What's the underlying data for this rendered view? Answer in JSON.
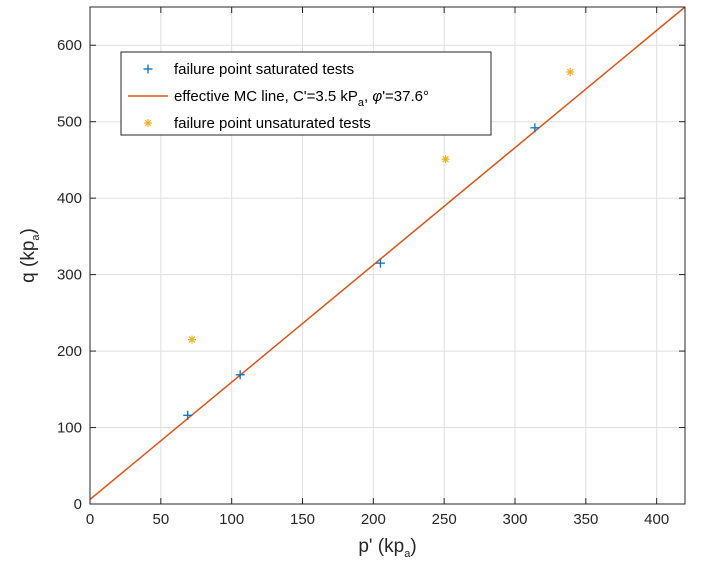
{
  "chart_data": {
    "type": "scatter",
    "title": "",
    "xlabel_main": "p' (kp",
    "xlabel_sub": "a",
    "xlabel_end": ")",
    "ylabel_main": "q (kp",
    "ylabel_sub": "a",
    "ylabel_end": ")",
    "xlim": [
      0,
      420
    ],
    "ylim": [
      0,
      650
    ],
    "xticks": [
      0,
      50,
      100,
      150,
      200,
      250,
      300,
      350,
      400
    ],
    "yticks": [
      0,
      100,
      200,
      300,
      400,
      500,
      600
    ],
    "grid": true,
    "legend_position": "top-left",
    "series": [
      {
        "name": "failure point saturated tests",
        "marker": "plus",
        "color": "#0072BD",
        "points": [
          [
            69,
            116
          ],
          [
            106,
            169
          ],
          [
            205,
            315
          ],
          [
            314,
            492
          ]
        ]
      },
      {
        "name": "effective MC line",
        "name_parts": {
          "a": "effective MC line, C'=3.5 kP",
          "a_sub": "a",
          "b": ", ",
          "phi": "φ",
          "c": "'=37.6°"
        },
        "type": "line",
        "color": "#D95319",
        "points": [
          [
            0,
            6
          ],
          [
            420,
            650
          ]
        ]
      },
      {
        "name": "failure point unsaturated tests",
        "marker": "asterisk",
        "color": "#EDB120",
        "points": [
          [
            72,
            215
          ],
          [
            251,
            451
          ],
          [
            339,
            565
          ]
        ]
      }
    ]
  }
}
